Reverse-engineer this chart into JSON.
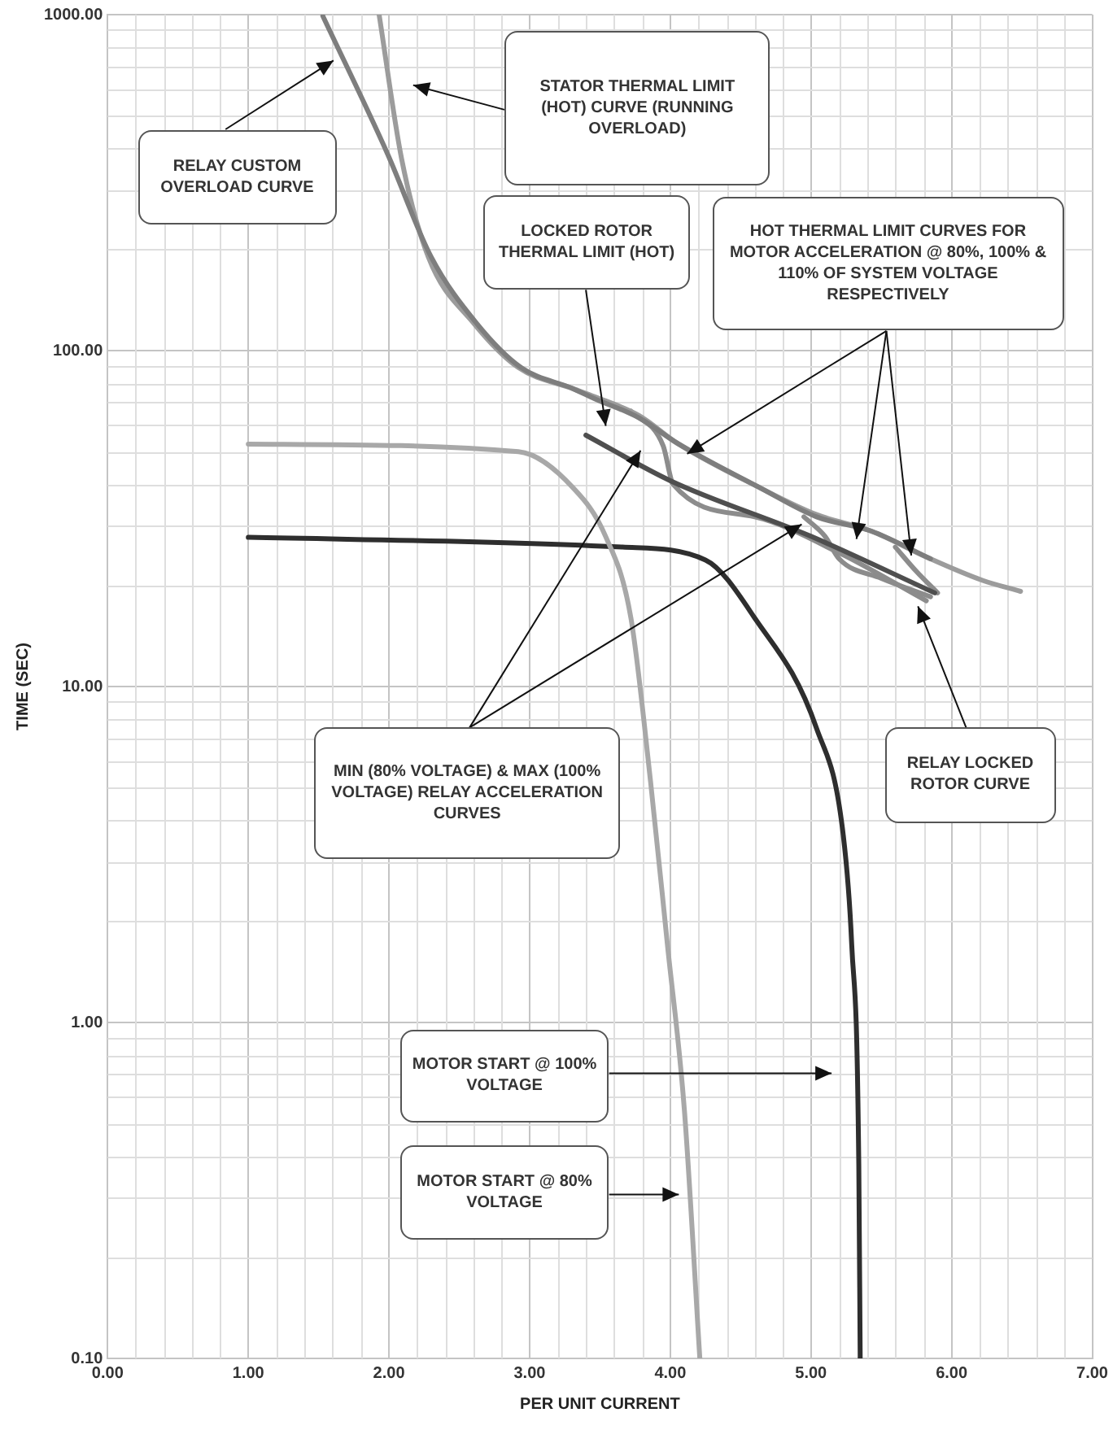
{
  "chart_data": {
    "type": "line",
    "xlabel": "PER UNIT CURRENT",
    "ylabel": "TIME (SEC)",
    "log": "y",
    "grid": true,
    "legend": false,
    "marker": "none",
    "line_style": "solid",
    "xlim": [
      0,
      7
    ],
    "xticks": [
      {
        "value": 0,
        "label": "0.00"
      },
      {
        "value": 1,
        "label": "1.00"
      },
      {
        "value": 2,
        "label": "2.00"
      },
      {
        "value": 3,
        "label": "3.00"
      },
      {
        "value": 4,
        "label": "4.00"
      },
      {
        "value": 5,
        "label": "5.00"
      },
      {
        "value": 6,
        "label": "6.00"
      },
      {
        "value": 7,
        "label": "7.00"
      }
    ],
    "ylim": [
      0.1,
      1000
    ],
    "yticks": [
      {
        "value": 0.1,
        "label": "0.10"
      },
      {
        "value": 1,
        "label": "1.00"
      },
      {
        "value": 10,
        "label": "10.00"
      },
      {
        "value": 100,
        "label": "100.00"
      },
      {
        "value": 1000,
        "label": "1000.00"
      }
    ],
    "series": [
      {
        "color": "#7e7e7e",
        "x": [
          1.53,
          1.99,
          2.3,
          2.62,
          2.94,
          3.31,
          3.46,
          3.78,
          4.05,
          4.64,
          5.04,
          5.43,
          5.85
        ],
        "values": [
          990,
          385,
          190,
          121,
          89,
          77,
          72,
          63,
          53,
          39,
          32,
          29,
          24
        ]
      },
      {
        "color": "#9c9c9c",
        "x": [
          1.93,
          2.09,
          2.28,
          2.6,
          2.92,
          3.31,
          3.46,
          3.78,
          4.05,
          4.64,
          5.04,
          5.43,
          5.82,
          6.22,
          6.49
        ],
        "values": [
          1000,
          372,
          190,
          121,
          89,
          77,
          73,
          64,
          53,
          39,
          32.5,
          29,
          24.3,
          20.7,
          19.2
        ]
      },
      {
        "color": "#4f4f4f",
        "x": [
          3.4,
          4.0,
          5.0,
          5.88
        ],
        "values": [
          56,
          41,
          28,
          19
        ]
      },
      {
        "color": "#8c8c8c",
        "x": [
          3.72,
          3.95,
          4.02,
          4.6,
          5.2,
          5.82
        ],
        "values": [
          66,
          52,
          40,
          32,
          25,
          18
        ]
      },
      {
        "color": "#8c8c8c",
        "x": [
          4.95,
          5.1,
          5.2,
          5.5,
          5.85
        ],
        "values": [
          32,
          28,
          24,
          21,
          18.5
        ]
      },
      {
        "color": "#8c8c8c",
        "x": [
          5.6,
          5.75,
          5.9
        ],
        "values": [
          26,
          22,
          19
        ]
      },
      {
        "color": "#a8a8a8",
        "x": [
          1.0,
          2.92,
          3.31,
          3.54,
          3.72,
          3.86,
          3.98,
          4.1,
          4.21
        ],
        "values": [
          52.7,
          50,
          39,
          28,
          16,
          5.2,
          1.7,
          0.55,
          0.1
        ]
      },
      {
        "color": "#2e2e2e",
        "x": [
          1.0,
          3.66,
          4.25,
          4.6,
          5.04,
          5.23,
          5.29,
          5.34,
          5.35
        ],
        "values": [
          27.8,
          26,
          23.8,
          16,
          7.5,
          3.6,
          1.7,
          0.38,
          0.1
        ]
      }
    ],
    "annotations": [
      "RELAY CUSTOM OVERLOAD CURVE",
      "STATOR THERMAL LIMIT (HOT) CURVE (RUNNING OVERLOAD)",
      "LOCKED ROTOR THERMAL LIMIT (HOT)",
      "HOT THERMAL LIMIT CURVES FOR MOTOR ACCELERATION @ 80%, 100% & 110% OF SYSTEM VOLTAGE RESPECTIVELY",
      "MIN (80% VOLTAGE) & MAX (100% VOLTAGE) RELAY ACCELERATION CURVES",
      "RELAY LOCKED ROTOR CURVE",
      "MOTOR START @ 100% VOLTAGE",
      "MOTOR START @ 80% VOLTAGE"
    ]
  }
}
